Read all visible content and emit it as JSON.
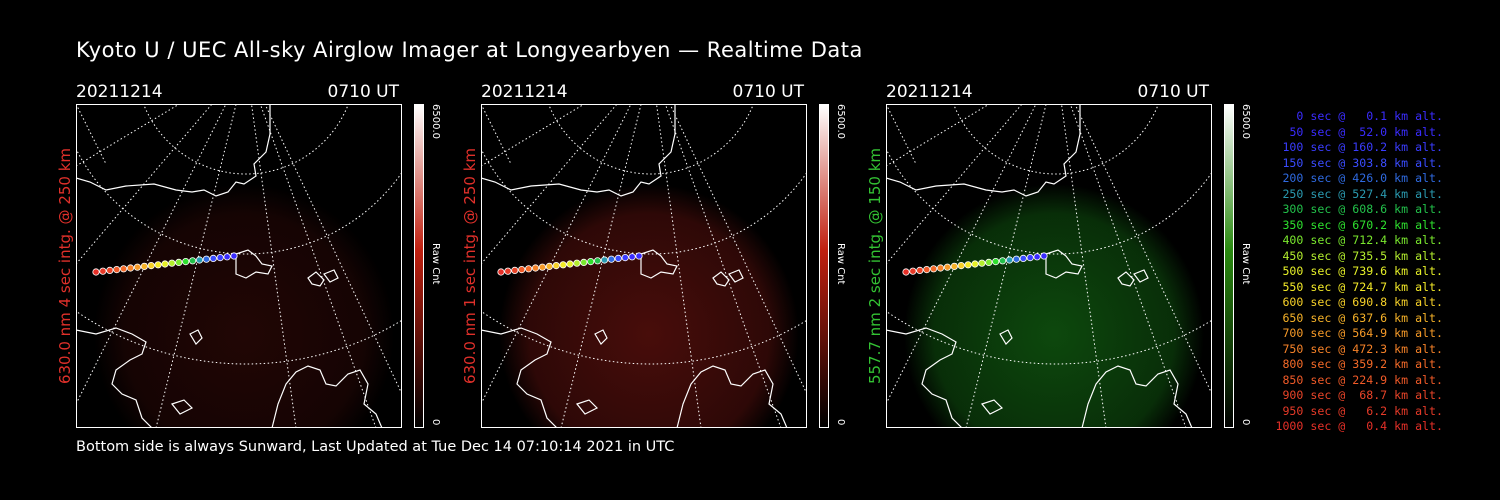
{
  "title": "Kyoto U / UEC All-sky Airglow Imager at Longyearbyen — Realtime Data",
  "footer": "Bottom side is always Sunward, Last Updated at Tue Dec 14 07:10:14 2021 in UTC",
  "panels": [
    {
      "date": "20211214",
      "time": "0710 UT",
      "ylabel": "630.0 nm 4 sec intg. @ 250 km",
      "label_color": "#e0302a",
      "tint": "#b0201a",
      "glow": 0.35,
      "colorbar": {
        "max": "6500.0",
        "min": "0",
        "label": "Raw Cnt",
        "low": "#000000",
        "mid": "#c02010",
        "high": "#ffffff"
      }
    },
    {
      "date": "20211214",
      "time": "0710 UT",
      "ylabel": "630.0 nm 1 sec intg. @ 250 km",
      "label_color": "#e0302a",
      "tint": "#b0201a",
      "glow": 0.75,
      "colorbar": {
        "max": "6500.0",
        "min": "0",
        "label": "Raw Cnt",
        "low": "#000000",
        "mid": "#c02010",
        "high": "#ffffff"
      }
    },
    {
      "date": "20211214",
      "time": "0710 UT",
      "ylabel": "557.7 nm 2 sec intg. @ 150 km",
      "label_color": "#33c233",
      "tint": "#1c9a1c",
      "glow": 0.85,
      "colorbar": {
        "max": "6500.0",
        "min": "0",
        "label": "Raw Cnt",
        "low": "#000000",
        "mid": "#2a8a10",
        "high": "#ffffff"
      }
    }
  ],
  "legend": [
    {
      "text": "0 sec @   0.1 km alt.",
      "color": "#3a2cff"
    },
    {
      "text": "50 sec @  52.0 km alt.",
      "color": "#3a2cff"
    },
    {
      "text": "100 sec @ 160.2 km alt.",
      "color": "#3a3cff"
    },
    {
      "text": "150 sec @ 303.8 km alt.",
      "color": "#3a4cff"
    },
    {
      "text": "200 sec @ 426.0 km alt.",
      "color": "#2f6ae0"
    },
    {
      "text": "250 sec @ 527.4 km alt.",
      "color": "#2a9ab0"
    },
    {
      "text": "300 sec @ 608.6 km alt.",
      "color": "#22c04a"
    },
    {
      "text": "350 sec @ 670.2 km alt.",
      "color": "#2ee02e"
    },
    {
      "text": "400 sec @ 712.4 km alt.",
      "color": "#7ae82e"
    },
    {
      "text": "450 sec @ 735.5 km alt.",
      "color": "#b4ee2e"
    },
    {
      "text": "500 sec @ 739.6 km alt.",
      "color": "#e6f028"
    },
    {
      "text": "550 sec @ 724.7 km alt.",
      "color": "#f4ea28"
    },
    {
      "text": "600 sec @ 690.8 km alt.",
      "color": "#f6d028"
    },
    {
      "text": "650 sec @ 637.6 km alt.",
      "color": "#f6b228"
    },
    {
      "text": "700 sec @ 564.9 km alt.",
      "color": "#f69a28"
    },
    {
      "text": "750 sec @ 472.3 km alt.",
      "color": "#f68228"
    },
    {
      "text": "800 sec @ 359.2 km alt.",
      "color": "#f46a28"
    },
    {
      "text": "850 sec @ 224.9 km alt.",
      "color": "#f05a28"
    },
    {
      "text": "900 sec @  68.7 km alt.",
      "color": "#e84428"
    },
    {
      "text": "950 sec @   6.2 km alt.",
      "color": "#e63a28"
    },
    {
      "text": "1000 sec @   0.4 km alt.",
      "color": "#e63028"
    }
  ]
}
